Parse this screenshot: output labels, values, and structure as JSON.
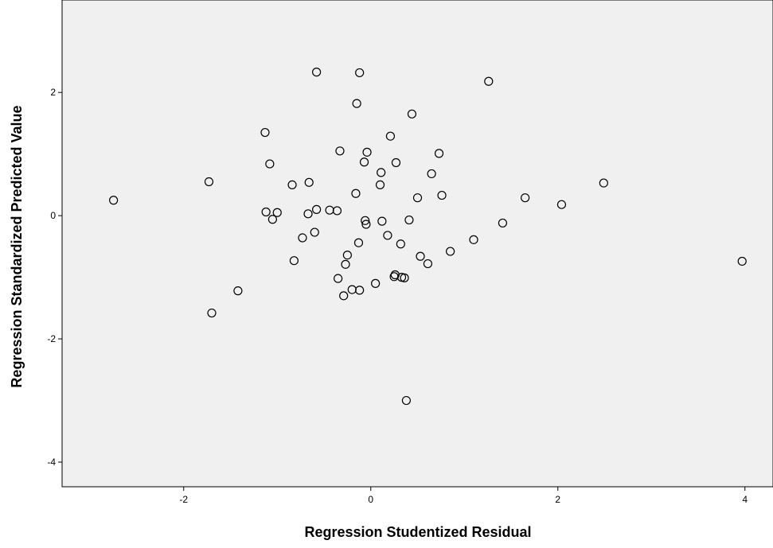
{
  "chart_data": {
    "type": "scatter",
    "title": "",
    "xlabel": "Regression Studentized Residual",
    "ylabel": "Regression Standardized Predicted Value",
    "xlim": [
      -3.3,
      4.3
    ],
    "ylim": [
      -4.4,
      3.5
    ],
    "xticks": [
      -2,
      0,
      2,
      4
    ],
    "yticks": [
      2,
      0,
      -2,
      -4
    ],
    "grid": false,
    "legend": "none",
    "colors": {
      "plot_bg": "#f0f0f0",
      "marker_stroke": "#000000",
      "frame": "#000000"
    },
    "x": [
      -2.75,
      -1.73,
      -1.7,
      -1.42,
      -1.13,
      -1.12,
      -1.08,
      -1.05,
      -1.0,
      -0.84,
      -0.82,
      -0.73,
      -0.67,
      -0.66,
      -0.6,
      -0.58,
      -0.58,
      -0.44,
      -0.36,
      -0.35,
      -0.33,
      -0.29,
      -0.27,
      -0.25,
      -0.2,
      -0.16,
      -0.15,
      -0.13,
      -0.12,
      -0.12,
      -0.07,
      -0.06,
      -0.05,
      -0.04,
      0.05,
      0.1,
      0.11,
      0.12,
      0.18,
      0.21,
      0.25,
      0.26,
      0.27,
      0.32,
      0.33,
      0.36,
      0.38,
      0.41,
      0.44,
      0.5,
      0.53,
      0.61,
      0.65,
      0.73,
      0.76,
      0.85,
      1.1,
      1.26,
      1.41,
      1.65,
      2.04,
      2.49,
      3.97
    ],
    "y": [
      0.25,
      0.55,
      -1.58,
      -1.22,
      1.35,
      0.06,
      0.84,
      -0.06,
      0.05,
      0.5,
      -0.73,
      -0.36,
      0.03,
      0.54,
      -0.27,
      0.1,
      2.33,
      0.09,
      0.08,
      -1.02,
      1.05,
      -1.3,
      -0.79,
      -0.64,
      -1.2,
      0.36,
      1.82,
      -0.44,
      -1.21,
      2.32,
      0.87,
      -0.08,
      -0.14,
      1.03,
      -1.1,
      0.5,
      0.7,
      -0.09,
      -0.32,
      1.29,
      -0.99,
      -0.96,
      0.86,
      -0.46,
      -1.0,
      -1.01,
      -3.0,
      -0.07,
      1.65,
      0.29,
      -0.66,
      -0.78,
      0.68,
      1.01,
      0.33,
      -0.58,
      -0.39,
      2.18,
      -0.12,
      0.29,
      0.18,
      0.53,
      -0.74
    ]
  }
}
